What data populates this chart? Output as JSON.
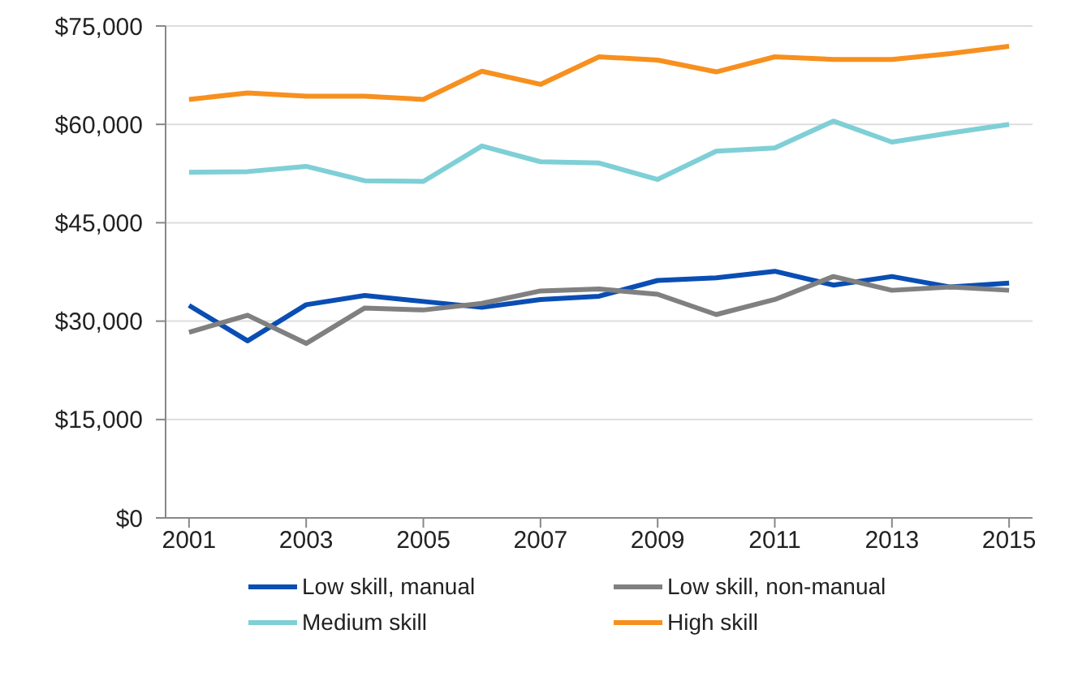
{
  "chart_data": {
    "type": "line",
    "x": [
      2001,
      2002,
      2003,
      2004,
      2005,
      2006,
      2007,
      2008,
      2009,
      2010,
      2011,
      2012,
      2013,
      2014,
      2015
    ],
    "series": [
      {
        "name": "Low skill, manual",
        "color": "#0a4eb4",
        "values": [
          32400,
          27000,
          32500,
          33900,
          33000,
          32100,
          33300,
          33800,
          36200,
          36600,
          37600,
          35500,
          36800,
          35200,
          35800
        ]
      },
      {
        "name": "Low skill, non-manual",
        "color": "#808080",
        "values": [
          28300,
          30900,
          26600,
          32000,
          31700,
          32700,
          34600,
          34900,
          34100,
          31000,
          33300,
          36800,
          34700,
          35200,
          34700
        ]
      },
      {
        "name": "Medium skill",
        "color": "#7fcfd6",
        "values": [
          52700,
          52800,
          53600,
          51400,
          51300,
          56700,
          54300,
          54100,
          51600,
          55900,
          56400,
          60500,
          57300,
          58700,
          60000
        ]
      },
      {
        "name": "High skill",
        "color": "#f7901e",
        "values": [
          63800,
          64800,
          64300,
          64300,
          63800,
          68100,
          66100,
          70300,
          69800,
          68000,
          70300,
          69900,
          69900,
          70800,
          71900
        ]
      }
    ],
    "xlim": [
      2000.6,
      2015.4
    ],
    "xticks": [
      2001,
      2003,
      2005,
      2007,
      2009,
      2011,
      2013,
      2015
    ],
    "ylim": [
      0,
      75000
    ],
    "yticks": [
      {
        "value": 0,
        "label": "$0"
      },
      {
        "value": 15000,
        "label": "$15,000"
      },
      {
        "value": 30000,
        "label": "$30,000"
      },
      {
        "value": 45000,
        "label": "$45,000"
      },
      {
        "value": 60000,
        "label": "$60,000"
      },
      {
        "value": 75000,
        "label": "$75,000"
      }
    ],
    "grid": "y",
    "legend": "bottom",
    "marker": "none",
    "line_style": "solid"
  }
}
